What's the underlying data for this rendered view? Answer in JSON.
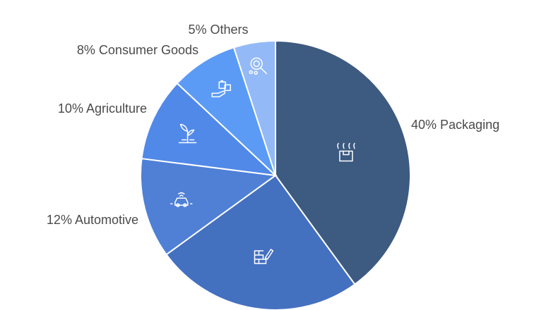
{
  "chart_data": {
    "type": "pie",
    "title": "",
    "start_angle_deg": 0,
    "direction": "clockwise",
    "slices": [
      {
        "label": "40% Packaging",
        "value": 40,
        "color": "#3d5a80",
        "icon": "packaging-icon"
      },
      {
        "label": "",
        "value": 25,
        "color": "#4470c0",
        "icon": "construction-icon"
      },
      {
        "label": "12% Automotive",
        "value": 12,
        "color": "#4f80d6",
        "icon": "automotive-icon"
      },
      {
        "label": "10% Agriculture",
        "value": 10,
        "color": "#5189e9",
        "icon": "agriculture-icon"
      },
      {
        "label": "8% Consumer Goods",
        "value": 8,
        "color": "#5b9bf5",
        "icon": "consumer-goods-icon"
      },
      {
        "label": "5% Others",
        "value": 5,
        "color": "#93b9f7",
        "icon": "others-icon"
      }
    ]
  }
}
